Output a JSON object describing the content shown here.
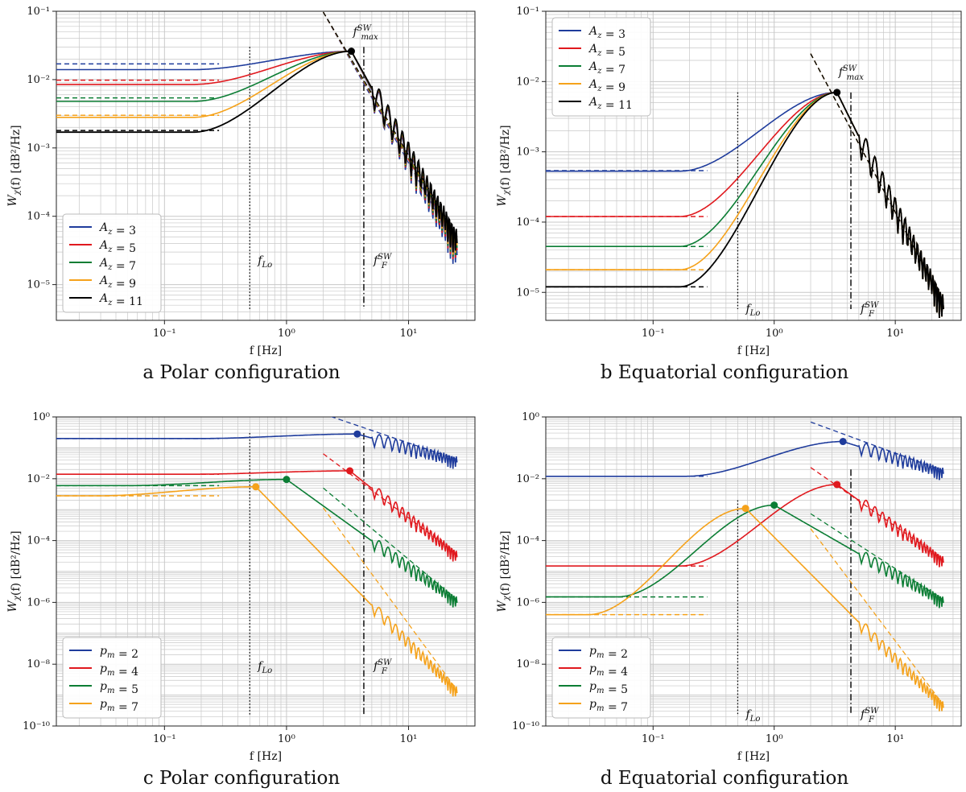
{
  "colors": {
    "blue": "#1f3c9c",
    "red": "#e0191e",
    "green": "#0b7d34",
    "orange": "#f5a21b",
    "black": "#000000"
  },
  "chart_data": [
    {
      "id": "a",
      "type": "line",
      "caption": "a  Polar configuration",
      "xlabel": "f [Hz]",
      "ylabel": "W_χ(f) [dB²/Hz]",
      "xscale": "log",
      "yscale": "log",
      "xlim": [
        0.013,
        35
      ],
      "ylim": [
        3e-06,
        0.1
      ],
      "xticks": [
        {
          "v": 0.1,
          "label": "10⁻¹"
        },
        {
          "v": 1,
          "label": "10⁰"
        },
        {
          "v": 10,
          "label": "10¹"
        }
      ],
      "yticks": [
        {
          "v": 1e-05,
          "label": "10⁻⁵"
        },
        {
          "v": 0.0001,
          "label": "10⁻⁴"
        },
        {
          "v": 0.001,
          "label": "10⁻³"
        },
        {
          "v": 0.01,
          "label": "10⁻²"
        },
        {
          "v": 0.1,
          "label": "10⁻¹"
        }
      ],
      "legend": "bottom-left",
      "series": [
        {
          "name": "A_z = 3",
          "label": "A_z = 3",
          "color": "blue",
          "low": 0.014,
          "asym": 0.017,
          "f_max": 3.4,
          "peak": 0.026,
          "fF": 4.3,
          "f_end": 25,
          "end": 2.8e-05
        },
        {
          "name": "A_z = 5",
          "label": "A_z = 5",
          "color": "red",
          "low": 0.0085,
          "asym": 0.0098,
          "f_max": 3.4,
          "peak": 0.026,
          "fF": 4.3,
          "f_end": 25,
          "end": 3.3e-05
        },
        {
          "name": "A_z = 7",
          "label": "A_z = 7",
          "color": "green",
          "low": 0.0048,
          "asym": 0.0054,
          "f_max": 3.4,
          "peak": 0.026,
          "fF": 4.3,
          "f_end": 25,
          "end": 3.6e-05
        },
        {
          "name": "A_z = 9",
          "label": "A_z = 9",
          "color": "orange",
          "low": 0.0028,
          "asym": 0.003,
          "f_max": 3.4,
          "peak": 0.026,
          "fF": 4.3,
          "f_end": 25,
          "end": 3.9e-05
        },
        {
          "name": "A_z = 11",
          "label": "A_z = 11",
          "color": "black",
          "low": 0.0017,
          "asym": 0.0018,
          "f_max": 3.4,
          "peak": 0.026,
          "fF": 4.3,
          "f_end": 25,
          "end": 4.2e-05
        }
      ],
      "markers": [
        {
          "f": 3.4,
          "y": 0.026,
          "color": "black"
        }
      ],
      "fLo": {
        "f": 0.5,
        "label": "f_Lo",
        "y_top": 0.03
      },
      "fF": {
        "f": 4.3,
        "label": "f_F^SW",
        "y_top": 0.03
      },
      "fmax_label": {
        "f": 3.4,
        "label": "f_max^SW"
      }
    },
    {
      "id": "b",
      "type": "line",
      "caption": "b  Equatorial configuration",
      "xlabel": "f [Hz]",
      "ylabel": "W_χ(f) [dB²/Hz]",
      "xscale": "log",
      "yscale": "log",
      "xlim": [
        0.013,
        35
      ],
      "ylim": [
        4e-06,
        0.1
      ],
      "xticks": [
        {
          "v": 0.1,
          "label": "10⁻¹"
        },
        {
          "v": 1,
          "label": "10⁰"
        },
        {
          "v": 10,
          "label": "10¹"
        }
      ],
      "yticks": [
        {
          "v": 1e-05,
          "label": "10⁻⁵"
        },
        {
          "v": 0.0001,
          "label": "10⁻⁴"
        },
        {
          "v": 0.001,
          "label": "10⁻³"
        },
        {
          "v": 0.01,
          "label": "10⁻²"
        },
        {
          "v": 0.1,
          "label": "10⁻¹"
        }
      ],
      "legend": "top-left",
      "series": [
        {
          "name": "A_z = 3",
          "label": "A_z = 3",
          "color": "blue",
          "low": 0.00053,
          "asym": 0.00054,
          "f_max": 3.3,
          "peak": 0.007,
          "fF": 4.3,
          "f_end": 25,
          "end": 6e-06
        },
        {
          "name": "A_z = 5",
          "label": "A_z = 5",
          "color": "red",
          "low": 0.00012,
          "asym": 0.00012,
          "f_max": 3.3,
          "peak": 0.007,
          "fF": 4.3,
          "f_end": 25,
          "end": 6e-06
        },
        {
          "name": "A_z = 7",
          "label": "A_z = 7",
          "color": "green",
          "low": 4.5e-05,
          "asym": 4.5e-05,
          "f_max": 3.3,
          "peak": 0.007,
          "fF": 4.3,
          "f_end": 25,
          "end": 6e-06
        },
        {
          "name": "A_z = 9",
          "label": "A_z = 9",
          "color": "orange",
          "low": 2.1e-05,
          "asym": 2.1e-05,
          "f_max": 3.3,
          "peak": 0.007,
          "fF": 4.3,
          "f_end": 25,
          "end": 6e-06
        },
        {
          "name": "A_z = 11",
          "label": "A_z = 11",
          "color": "black",
          "low": 1.2e-05,
          "asym": 1.2e-05,
          "f_max": 3.3,
          "peak": 0.007,
          "fF": 4.3,
          "f_end": 25,
          "end": 6e-06
        }
      ],
      "markers": [
        {
          "f": 3.3,
          "y": 0.007,
          "color": "black"
        }
      ],
      "fLo": {
        "f": 0.5,
        "label": "f_Lo",
        "y_top": 0.007
      },
      "fF": {
        "f": 4.3,
        "label": "f_F^SW",
        "y_top": 0.007
      },
      "fmax_label": {
        "f": 3.3,
        "label": "f_max^SW"
      }
    },
    {
      "id": "c",
      "type": "line",
      "caption": "c  Polar configuration",
      "xlabel": "f [Hz]",
      "ylabel": "W_χ(f) [dB²/Hz]",
      "xscale": "log",
      "yscale": "log",
      "xlim": [
        0.013,
        35
      ],
      "ylim": [
        1e-10,
        1
      ],
      "xticks": [
        {
          "v": 0.1,
          "label": "10⁻¹"
        },
        {
          "v": 1,
          "label": "10⁰"
        },
        {
          "v": 10,
          "label": "10¹"
        }
      ],
      "yticks": [
        {
          "v": 1e-10,
          "label": "10⁻¹⁰"
        },
        {
          "v": 1e-08,
          "label": "10⁻⁸"
        },
        {
          "v": 1e-06,
          "label": "10⁻⁶"
        },
        {
          "v": 0.0001,
          "label": "10⁻⁴"
        },
        {
          "v": 0.01,
          "label": "10⁻²"
        },
        {
          "v": 1,
          "label": "10⁰"
        }
      ],
      "legend": "bottom-left",
      "series": [
        {
          "name": "p_m = 2",
          "label": "p_m = 2",
          "color": "blue",
          "low": 0.2,
          "asym": 0.2,
          "f_max": 3.8,
          "peak": 0.28,
          "fF": 4.3,
          "f_end": 25,
          "end": 0.035
        },
        {
          "name": "p_m = 4",
          "label": "p_m = 4",
          "color": "red",
          "low": 0.014,
          "asym": 0.014,
          "f_max": 3.3,
          "peak": 0.018,
          "fF": 4.3,
          "f_end": 25,
          "end": 3e-05
        },
        {
          "name": "p_m = 5",
          "label": "p_m = 5",
          "color": "green",
          "low": 0.006,
          "asym": 0.006,
          "f_max": 1.0,
          "peak": 0.0095,
          "fF": 4.3,
          "f_end": 25,
          "end": 1e-06
        },
        {
          "name": "p_m = 7",
          "label": "p_m = 7",
          "color": "orange",
          "low": 0.0028,
          "asym": 0.0028,
          "f_max": 0.56,
          "peak": 0.0055,
          "fF": 4.3,
          "f_end": 25,
          "end": 1.2e-09
        }
      ],
      "markers": [
        {
          "f": 3.8,
          "y": 0.28,
          "color": "blue"
        },
        {
          "f": 3.3,
          "y": 0.018,
          "color": "red"
        },
        {
          "f": 1.0,
          "y": 0.0095,
          "color": "green"
        },
        {
          "f": 0.56,
          "y": 0.0055,
          "color": "orange"
        }
      ],
      "fLo": {
        "f": 0.5,
        "label": "f_Lo",
        "y_top": 0.3
      },
      "fF": {
        "f": 4.3,
        "label": "f_F^SW",
        "y_top": 0.3
      }
    },
    {
      "id": "d",
      "type": "line",
      "caption": "d  Equatorial configuration",
      "xlabel": "f [Hz]",
      "ylabel": "W_χ(f) [dB²/Hz]",
      "xscale": "log",
      "yscale": "log",
      "xlim": [
        0.013,
        35
      ],
      "ylim": [
        1e-10,
        1
      ],
      "xticks": [
        {
          "v": 0.1,
          "label": "10⁻¹"
        },
        {
          "v": 1,
          "label": "10⁰"
        },
        {
          "v": 10,
          "label": "10¹"
        }
      ],
      "yticks": [
        {
          "v": 1e-10,
          "label": "10⁻¹⁰"
        },
        {
          "v": 1e-08,
          "label": "10⁻⁸"
        },
        {
          "v": 1e-06,
          "label": "10⁻⁶"
        },
        {
          "v": 0.0001,
          "label": "10⁻⁴"
        },
        {
          "v": 0.01,
          "label": "10⁻²"
        },
        {
          "v": 1,
          "label": "10⁰"
        }
      ],
      "legend": "bottom-left",
      "series": [
        {
          "name": "p_m = 2",
          "label": "p_m = 2",
          "color": "blue",
          "low": 0.012,
          "asym": 0.012,
          "f_max": 3.7,
          "peak": 0.16,
          "fF": 4.3,
          "f_end": 25,
          "end": 0.015
        },
        {
          "name": "p_m = 4",
          "label": "p_m = 4",
          "color": "red",
          "low": 1.5e-05,
          "asym": 1.5e-05,
          "f_max": 3.3,
          "peak": 0.0065,
          "fF": 4.3,
          "f_end": 25,
          "end": 2e-05
        },
        {
          "name": "p_m = 5",
          "label": "p_m = 5",
          "color": "green",
          "low": 1.5e-06,
          "asym": 1.5e-06,
          "f_max": 1.0,
          "peak": 0.0014,
          "fF": 4.3,
          "f_end": 25,
          "end": 1e-06
        },
        {
          "name": "p_m = 7",
          "label": "p_m = 7",
          "color": "orange",
          "low": 4e-07,
          "asym": 4e-07,
          "f_max": 0.58,
          "peak": 0.0011,
          "fF": 4.3,
          "f_end": 25,
          "end": 4e-10
        }
      ],
      "markers": [
        {
          "f": 3.7,
          "y": 0.16,
          "color": "blue"
        },
        {
          "f": 3.3,
          "y": 0.0065,
          "color": "red"
        },
        {
          "f": 1.0,
          "y": 0.0014,
          "color": "green"
        },
        {
          "f": 0.58,
          "y": 0.0011,
          "color": "orange"
        }
      ],
      "fLo": {
        "f": 0.5,
        "label": "f_Lo",
        "y_top": 0.002
      },
      "fF": {
        "f": 4.3,
        "label": "f_F^SW",
        "y_top": 0.02
      }
    }
  ]
}
